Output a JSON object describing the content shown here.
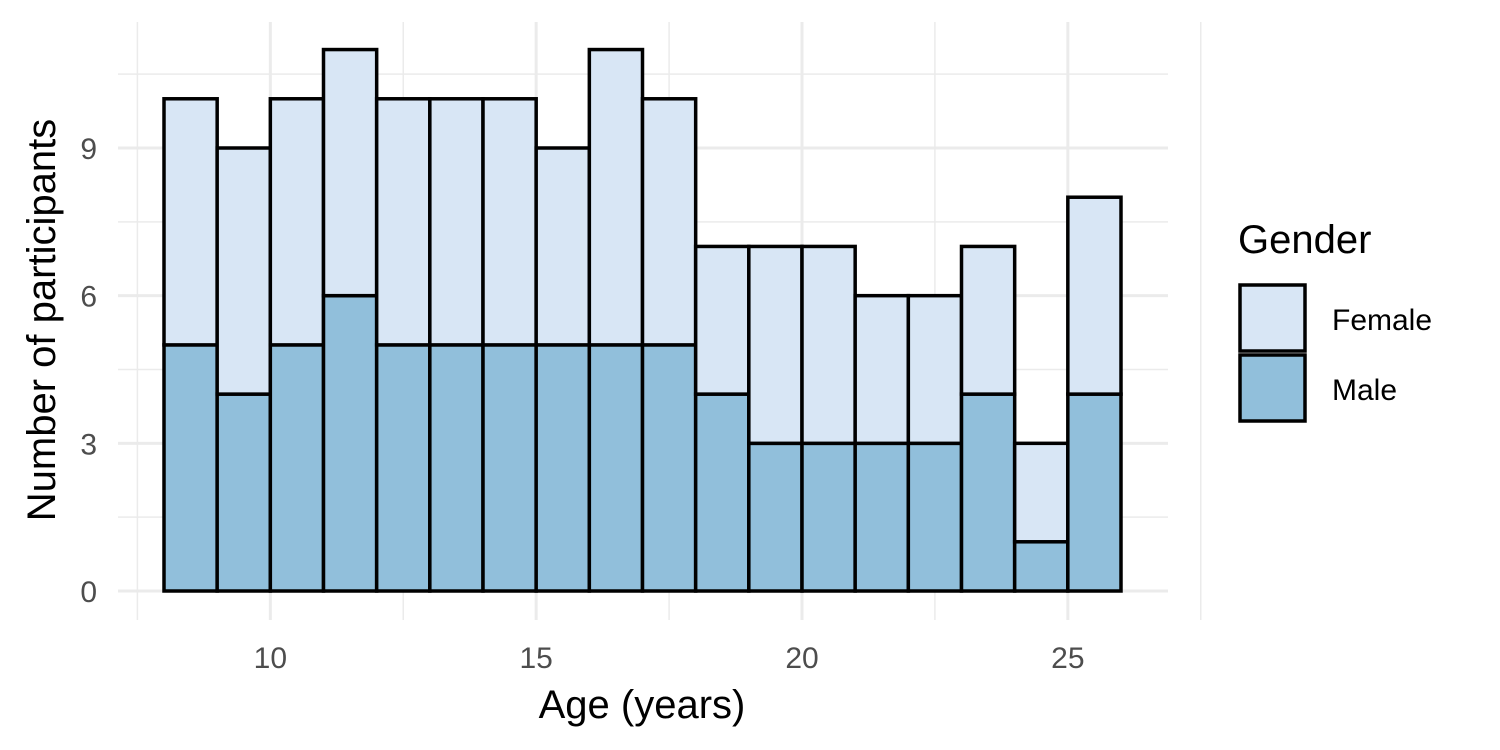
{
  "chart_data": {
    "type": "bar",
    "stacked": true,
    "chart_style": "histogram",
    "x": [
      8.5,
      9.5,
      10.5,
      11.5,
      12.5,
      13.5,
      14.5,
      15.5,
      16.5,
      17.5,
      18.5,
      19.5,
      20.5,
      21.5,
      22.5,
      23.5,
      24.5,
      25.5
    ],
    "bin_width": 1,
    "series": [
      {
        "name": "Male",
        "color": "#91bfdb",
        "values": [
          5,
          4,
          5,
          6,
          5,
          5,
          5,
          5,
          5,
          5,
          4,
          3,
          3,
          3,
          3,
          4,
          1,
          4
        ]
      },
      {
        "name": "Female",
        "color": "#d8e6f5",
        "values": [
          5,
          5,
          5,
          5,
          5,
          5,
          5,
          4,
          6,
          5,
          3,
          4,
          4,
          3,
          3,
          3,
          2,
          4
        ]
      }
    ],
    "xlabel": "Age (years)",
    "ylabel": "Number of participants",
    "x_ticks": [
      10,
      15,
      20,
      25
    ],
    "y_ticks": [
      0,
      3,
      6,
      9
    ],
    "xlim": [
      7.5,
      27
    ],
    "ylim": [
      0,
      11.5
    ],
    "grid": true,
    "bar_outline_color": "#000000",
    "grid_color": "#ebebeb",
    "legend": {
      "title": "Gender",
      "position": "right",
      "entries": [
        {
          "label": "Female",
          "color": "#d8e6f5"
        },
        {
          "label": "Male",
          "color": "#91bfdb"
        }
      ]
    }
  }
}
